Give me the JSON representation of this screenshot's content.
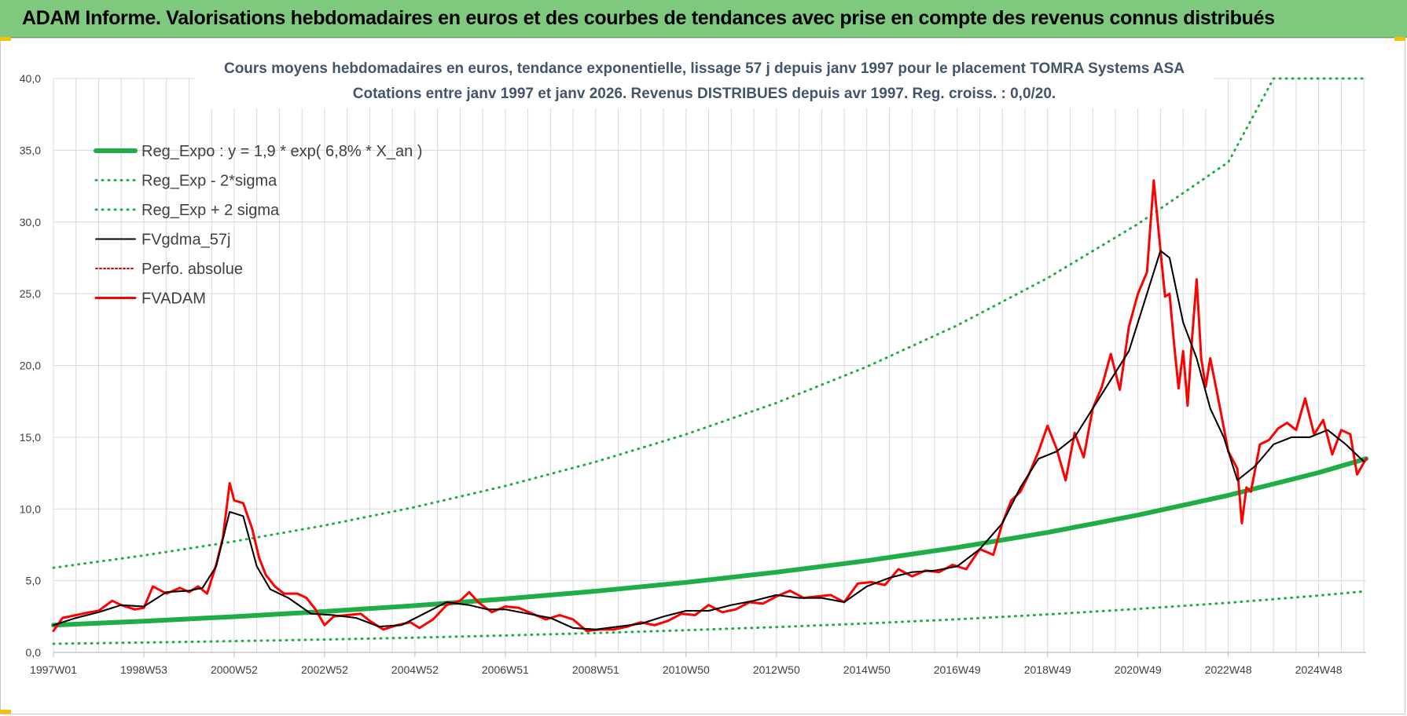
{
  "banner": {
    "title": "ADAM Informe. Valorisations hebdomadaires en euros et des courbes de tendances avec prise en compte des revenus connus distribués"
  },
  "colors": {
    "banner_bg": "#7fc97f",
    "regression": "#1fad45",
    "sigma": "#1fad45",
    "smoothed": "#000000",
    "perfo": "#e00000",
    "fvadam": "#ff0000"
  },
  "chart_data": {
    "type": "line",
    "title": [
      "Cours moyens hebdomadaires en euros, tendance exponentielle, lissage 57 j depuis janv 1997 pour le placement TOMRA Systems ASA",
      "Cotations entre janv 1997 et janv 2026. Revenus DISTRIBUES depuis avr 1997. Reg. croiss. : 0,0/20."
    ],
    "xlabel": "",
    "ylabel": "",
    "x_range": [
      1997.0,
      2026.05
    ],
    "ylim": [
      0,
      40
    ],
    "y_ticks": [
      "0,0",
      "5,0",
      "10,0",
      "15,0",
      "20,0",
      "25,0",
      "30,0",
      "35,0",
      "40,0"
    ],
    "x_ticks": [
      {
        "label": "1997W01",
        "x": 1997.0
      },
      {
        "label": "1998W53",
        "x": 1999.0
      },
      {
        "label": "2000W52",
        "x": 2001.0
      },
      {
        "label": "2002W52",
        "x": 2003.0
      },
      {
        "label": "2004W52",
        "x": 2005.0
      },
      {
        "label": "2006W51",
        "x": 2007.0
      },
      {
        "label": "2008W51",
        "x": 2009.0
      },
      {
        "label": "2010W50",
        "x": 2011.0
      },
      {
        "label": "2012W50",
        "x": 2013.0
      },
      {
        "label": "2014W50",
        "x": 2015.0
      },
      {
        "label": "2016W49",
        "x": 2017.0
      },
      {
        "label": "2018W49",
        "x": 2019.0
      },
      {
        "label": "2020W49",
        "x": 2021.0
      },
      {
        "label": "2022W48",
        "x": 2023.0
      },
      {
        "label": "2024W48",
        "x": 2025.0
      }
    ],
    "grid": true,
    "legend_position": "top-left",
    "series": [
      {
        "name": "Reg_Expo : y = 1,9 * exp( 6,8% *  X_an )",
        "kind": "reg",
        "style": "solid-thick",
        "x": [
          1997.0,
          1999.0,
          2001.0,
          2003.0,
          2005.0,
          2007.0,
          2009.0,
          2011.0,
          2013.0,
          2015.0,
          2017.0,
          2019.0,
          2021.0,
          2023.0,
          2025.0,
          2026.05
        ],
        "y": [
          1.9,
          2.18,
          2.49,
          2.85,
          3.26,
          3.73,
          4.27,
          4.88,
          5.59,
          6.39,
          7.31,
          8.36,
          9.57,
          10.95,
          12.53,
          13.5
        ]
      },
      {
        "name": "Reg_Exp - 2*sigma",
        "kind": "lower",
        "style": "dotted",
        "x": [
          1997.0,
          1999.0,
          2001.0,
          2003.0,
          2005.0,
          2007.0,
          2009.0,
          2011.0,
          2013.0,
          2015.0,
          2017.0,
          2019.0,
          2021.0,
          2023.0,
          2025.0,
          2026.05
        ],
        "y": [
          0.6,
          0.69,
          0.79,
          0.9,
          1.03,
          1.18,
          1.35,
          1.55,
          1.77,
          2.02,
          2.31,
          2.65,
          3.03,
          3.46,
          3.96,
          4.27
        ]
      },
      {
        "name": "Reg_Exp + 2 sigma",
        "kind": "upper",
        "style": "dotted",
        "x": [
          1997.0,
          1999.0,
          2001.0,
          2003.0,
          2005.0,
          2007.0,
          2009.0,
          2011.0,
          2013.0,
          2015.0,
          2017.0,
          2019.0,
          2021.0,
          2023.0,
          2024.0,
          2026.05
        ],
        "y": [
          5.9,
          6.76,
          7.74,
          8.85,
          10.13,
          11.6,
          13.28,
          15.2,
          17.39,
          19.91,
          22.79,
          26.09,
          29.86,
          34.17,
          40.0,
          40.0
        ]
      },
      {
        "name": "FVgdma_57j",
        "kind": "smooth",
        "style": "solid-thin",
        "x": [
          1997.0,
          1997.5,
          1998.0,
          1998.5,
          1999.0,
          1999.5,
          2000.0,
          2000.3,
          2000.6,
          2000.9,
          2001.2,
          2001.5,
          2001.8,
          2002.2,
          2002.7,
          2003.2,
          2003.7,
          2004.2,
          2004.7,
          2005.2,
          2005.7,
          2006.2,
          2006.6,
          2007.0,
          2007.5,
          2008.0,
          2008.5,
          2009.0,
          2009.5,
          2010.0,
          2010.5,
          2011.0,
          2011.5,
          2012.0,
          2012.5,
          2013.0,
          2013.5,
          2014.0,
          2014.5,
          2015.0,
          2015.5,
          2016.0,
          2016.5,
          2017.0,
          2017.5,
          2018.0,
          2018.4,
          2018.8,
          2019.2,
          2019.6,
          2020.0,
          2020.4,
          2020.8,
          2021.2,
          2021.5,
          2021.7,
          2022.0,
          2022.3,
          2022.6,
          2022.9,
          2023.2,
          2023.6,
          2024.0,
          2024.4,
          2024.8,
          2025.2,
          2025.6,
          2026.0
        ],
        "y": [
          1.9,
          2.4,
          2.8,
          3.3,
          3.2,
          4.2,
          4.3,
          4.5,
          6.0,
          9.8,
          9.5,
          6.0,
          4.4,
          3.8,
          2.7,
          2.6,
          2.4,
          1.8,
          1.9,
          2.7,
          3.5,
          3.3,
          3.0,
          3.0,
          2.7,
          2.4,
          1.7,
          1.6,
          1.8,
          2.0,
          2.5,
          2.9,
          2.9,
          3.3,
          3.6,
          4.0,
          3.8,
          3.8,
          3.5,
          4.6,
          5.2,
          5.6,
          5.7,
          6.0,
          7.2,
          9.0,
          11.5,
          13.5,
          14.0,
          15.0,
          17.0,
          19.0,
          21.0,
          25.0,
          28.0,
          27.5,
          23.0,
          20.5,
          17.0,
          15.0,
          12.0,
          13.0,
          14.5,
          15.0,
          15.0,
          15.5,
          14.5,
          13.3
        ]
      },
      {
        "name": "Perfo. absolue",
        "kind": "perfo",
        "style": "dotted-red",
        "x": [
          1997.0,
          1997.5,
          1998.0,
          1998.5,
          1999.0,
          1999.5,
          2000.0,
          2000.3,
          2000.6,
          2000.9,
          2001.2,
          2001.5,
          2001.8,
          2002.2,
          2002.7,
          2003.2,
          2003.7,
          2004.2,
          2004.7,
          2005.2,
          2005.7,
          2006.2,
          2006.6,
          2007.0,
          2007.5,
          2008.0,
          2008.5,
          2009.0,
          2009.5,
          2010.0,
          2010.5,
          2011.0,
          2011.5,
          2012.0,
          2012.5,
          2013.0,
          2013.5,
          2014.0,
          2014.5,
          2015.0,
          2015.5,
          2016.0,
          2016.5,
          2017.0,
          2017.5,
          2018.0,
          2018.4,
          2018.8,
          2019.2,
          2019.6,
          2020.0,
          2020.4,
          2020.8,
          2021.2,
          2021.5,
          2021.7,
          2022.0,
          2022.3,
          2022.6,
          2022.9,
          2023.2,
          2023.6,
          2024.0,
          2024.4,
          2024.8,
          2025.2,
          2025.6,
          2026.0
        ],
        "y": [
          1.9,
          2.4,
          2.8,
          3.3,
          3.2,
          4.2,
          4.3,
          4.5,
          6.0,
          9.8,
          9.5,
          6.0,
          4.4,
          3.8,
          2.7,
          2.6,
          2.4,
          1.8,
          1.9,
          2.7,
          3.5,
          3.3,
          3.0,
          3.0,
          2.7,
          2.4,
          1.7,
          1.6,
          1.8,
          2.0,
          2.5,
          2.9,
          2.9,
          3.3,
          3.6,
          4.0,
          3.8,
          3.8,
          3.5,
          4.6,
          5.2,
          5.6,
          5.7,
          6.0,
          7.2,
          9.0,
          11.5,
          13.5,
          14.0,
          15.0,
          17.0,
          19.0,
          21.0,
          25.0,
          28.0,
          27.5,
          23.0,
          20.5,
          17.0,
          15.0,
          12.0,
          13.0,
          14.5,
          15.0,
          15.0,
          15.5,
          14.5,
          13.3
        ]
      },
      {
        "name": "FVADAM",
        "kind": "price",
        "style": "solid-red",
        "x": [
          1997.0,
          1997.2,
          1997.5,
          1997.8,
          1998.0,
          1998.3,
          1998.5,
          1998.8,
          1999.0,
          1999.2,
          1999.5,
          1999.8,
          2000.0,
          2000.2,
          2000.4,
          2000.6,
          2000.75,
          2000.9,
          2001.0,
          2001.2,
          2001.4,
          2001.55,
          2001.7,
          2001.9,
          2002.1,
          2002.4,
          2002.6,
          2002.8,
          2003.0,
          2003.2,
          2003.5,
          2003.8,
          2004.0,
          2004.3,
          2004.6,
          2004.9,
          2005.1,
          2005.4,
          2005.7,
          2006.0,
          2006.2,
          2006.4,
          2006.7,
          2007.0,
          2007.3,
          2007.6,
          2007.9,
          2008.2,
          2008.5,
          2008.8,
          2009.1,
          2009.4,
          2009.7,
          2010.0,
          2010.3,
          2010.6,
          2010.9,
          2011.2,
          2011.5,
          2011.8,
          2012.1,
          2012.4,
          2012.7,
          2013.0,
          2013.3,
          2013.6,
          2013.9,
          2014.2,
          2014.5,
          2014.8,
          2015.1,
          2015.4,
          2015.7,
          2016.0,
          2016.3,
          2016.6,
          2016.9,
          2017.2,
          2017.5,
          2017.8,
          2018.0,
          2018.2,
          2018.4,
          2018.6,
          2018.8,
          2019.0,
          2019.2,
          2019.4,
          2019.6,
          2019.8,
          2020.0,
          2020.2,
          2020.4,
          2020.6,
          2020.8,
          2021.0,
          2021.2,
          2021.35,
          2021.5,
          2021.6,
          2021.7,
          2021.8,
          2021.9,
          2022.0,
          2022.1,
          2022.2,
          2022.3,
          2022.4,
          2022.5,
          2022.6,
          2022.8,
          2023.0,
          2023.2,
          2023.3,
          2023.4,
          2023.5,
          2023.7,
          2023.9,
          2024.1,
          2024.3,
          2024.5,
          2024.7,
          2024.9,
          2025.1,
          2025.3,
          2025.5,
          2025.7,
          2025.85,
          2026.05
        ],
        "y": [
          1.5,
          2.4,
          2.6,
          2.8,
          2.9,
          3.6,
          3.3,
          3.0,
          3.1,
          4.6,
          4.1,
          4.5,
          4.2,
          4.6,
          4.1,
          6.1,
          8.0,
          11.8,
          10.6,
          10.4,
          8.6,
          6.6,
          5.4,
          4.6,
          4.1,
          4.1,
          3.8,
          3.0,
          1.9,
          2.5,
          2.6,
          2.7,
          2.2,
          1.6,
          1.9,
          2.1,
          1.7,
          2.3,
          3.3,
          3.6,
          4.2,
          3.5,
          2.8,
          3.2,
          3.1,
          2.7,
          2.3,
          2.6,
          2.3,
          1.5,
          1.6,
          1.6,
          1.8,
          2.1,
          1.9,
          2.2,
          2.7,
          2.6,
          3.3,
          2.8,
          3.0,
          3.5,
          3.4,
          3.9,
          4.3,
          3.8,
          3.9,
          4.0,
          3.5,
          4.8,
          4.9,
          4.7,
          5.8,
          5.3,
          5.7,
          5.6,
          6.1,
          5.8,
          7.2,
          6.8,
          9.0,
          10.6,
          11.2,
          12.5,
          14.0,
          15.8,
          14.2,
          12.0,
          15.3,
          13.6,
          17.0,
          18.5,
          20.8,
          18.3,
          22.7,
          25.0,
          26.5,
          32.9,
          28.0,
          24.8,
          25.0,
          21.5,
          18.4,
          21.0,
          17.2,
          22.0,
          26.0,
          20.5,
          18.5,
          20.5,
          17.3,
          14.0,
          12.8,
          9.0,
          11.5,
          11.2,
          14.5,
          14.8,
          15.6,
          16.0,
          15.5,
          17.7,
          15.2,
          16.2,
          13.8,
          15.5,
          15.2,
          12.4,
          13.5
        ]
      }
    ]
  }
}
